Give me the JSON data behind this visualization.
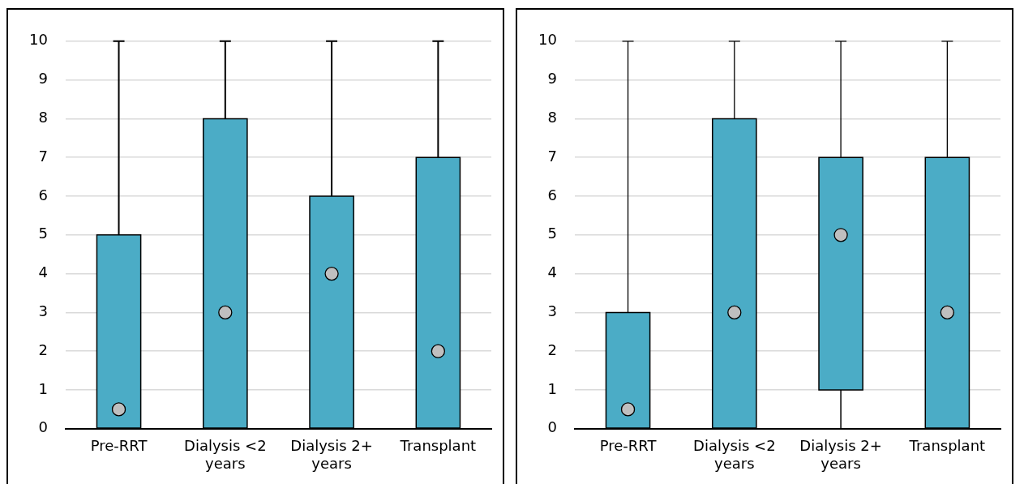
{
  "chart_data": [
    {
      "type": "box",
      "categories": [
        "Pre-RRT",
        "Dialysis <2 years",
        "Dialysis 2+ years",
        "Transplant"
      ],
      "color": "#4bacc6",
      "boxes": [
        {
          "low": 0,
          "q1": 0,
          "median": 0.5,
          "q3": 5,
          "high": 10
        },
        {
          "low": 0,
          "q1": 0,
          "median": 3,
          "q3": 8,
          "high": 10
        },
        {
          "low": 0,
          "q1": 0,
          "median": 4,
          "q3": 6,
          "high": 10
        },
        {
          "low": 0,
          "q1": 0,
          "median": 2,
          "q3": 7,
          "high": 10
        }
      ],
      "ylim": [
        0,
        10
      ],
      "yticks": [
        0,
        1,
        2,
        3,
        4,
        5,
        6,
        7,
        8,
        9,
        10
      ],
      "grid": "y"
    },
    {
      "type": "box",
      "categories": [
        "Pre-RRT",
        "Dialysis <2 years",
        "Dialysis 2+ years",
        "Transplant"
      ],
      "color": "#4bacc6",
      "boxes": [
        {
          "low": 0,
          "q1": 0,
          "median": 0.5,
          "q3": 3,
          "high": 10
        },
        {
          "low": 0,
          "q1": 0,
          "median": 3,
          "q3": 8,
          "high": 10
        },
        {
          "low": 0,
          "q1": 1,
          "median": 5,
          "q3": 7,
          "high": 10
        },
        {
          "low": 0,
          "q1": 0,
          "median": 3,
          "q3": 7,
          "high": 10
        }
      ],
      "ylim": [
        0,
        10
      ],
      "yticks": [
        0,
        1,
        2,
        3,
        4,
        5,
        6,
        7,
        8,
        9,
        10
      ],
      "grid": "y"
    }
  ]
}
